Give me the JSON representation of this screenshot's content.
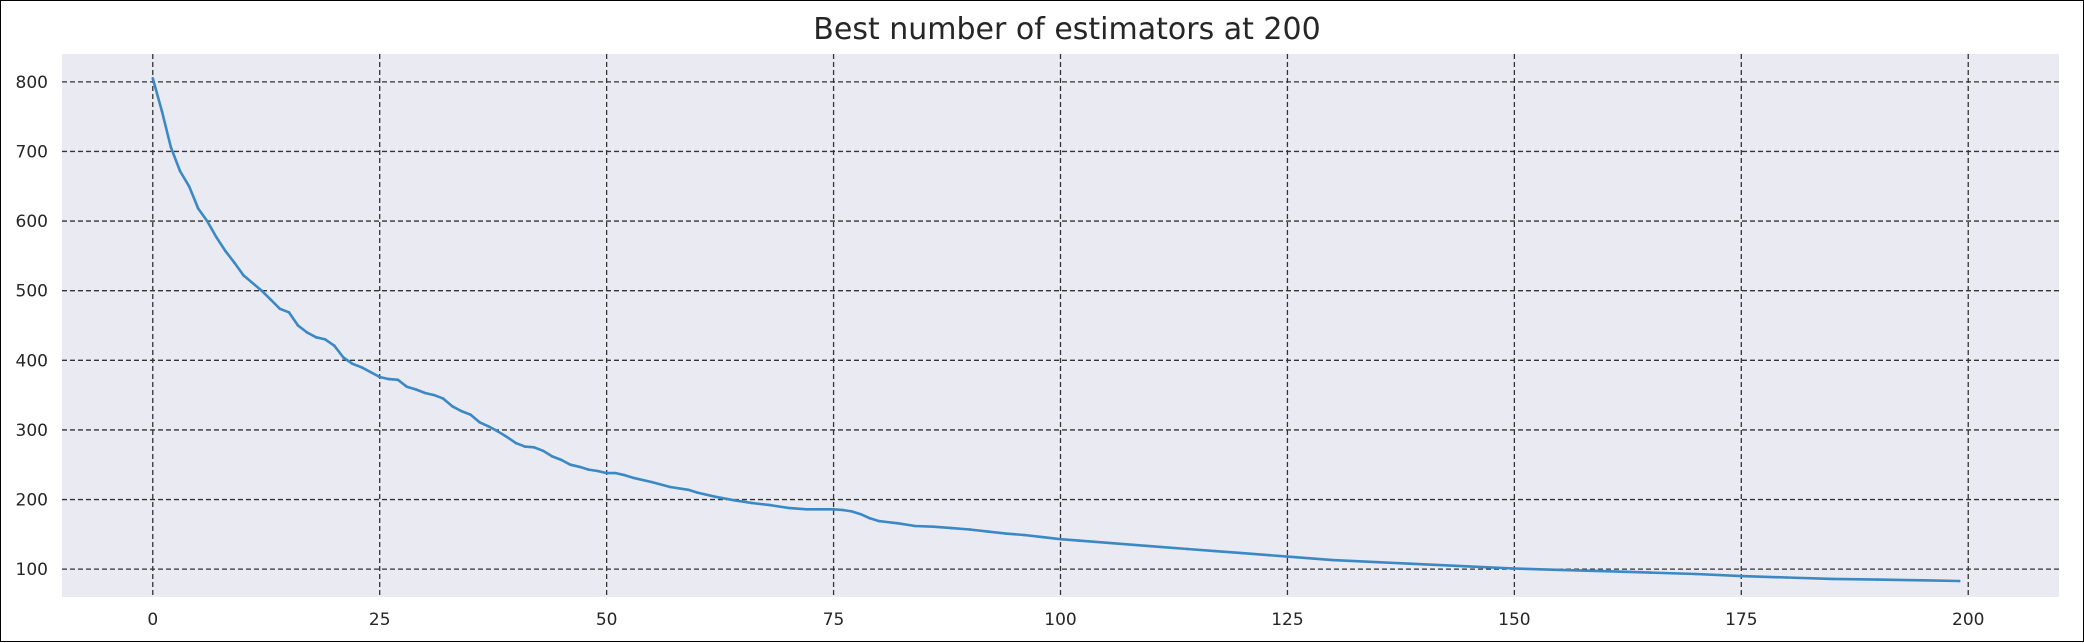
{
  "chart_data": {
    "type": "line",
    "title": "Best number of estimators at 200",
    "xlabel": "",
    "ylabel": "",
    "xlim": [
      -10,
      210
    ],
    "ylim": [
      60,
      840
    ],
    "xticks": [
      0,
      25,
      50,
      75,
      100,
      125,
      150,
      175,
      200
    ],
    "yticks": [
      100,
      200,
      300,
      400,
      500,
      600,
      700,
      800
    ],
    "grid": true,
    "grid_style": "dashed",
    "background_color": "#eaeaf2",
    "line_color": "#3a89c4",
    "series": [
      {
        "x": [
          0,
          1,
          2,
          3,
          4,
          5,
          6,
          7,
          8,
          9,
          10,
          12,
          13,
          14,
          15,
          16,
          17,
          18,
          19,
          20,
          21,
          22,
          23,
          24,
          25,
          26,
          27,
          28,
          29,
          30,
          31,
          32,
          33,
          34,
          35,
          36,
          37,
          38,
          39,
          40,
          41,
          42,
          43,
          44,
          45,
          46,
          47,
          48,
          49,
          50,
          51,
          52,
          53,
          55,
          57,
          59,
          60,
          62,
          64,
          66,
          68,
          70,
          72,
          74,
          75,
          76,
          77,
          78,
          79,
          80,
          82,
          84,
          86,
          88,
          90,
          92,
          94,
          96,
          98,
          100,
          102,
          105,
          108,
          111,
          114,
          117,
          120,
          123,
          125,
          128,
          130,
          135,
          140,
          145,
          150,
          155,
          160,
          165,
          170,
          175,
          180,
          185,
          190,
          195,
          199
        ],
        "y": [
          805,
          758,
          706,
          672,
          650,
          618,
          600,
          577,
          557,
          540,
          522,
          500,
          487,
          474,
          469,
          450,
          440,
          433,
          430,
          421,
          404,
          395,
          390,
          383,
          376,
          373,
          372,
          362,
          358,
          353,
          350,
          345,
          334,
          327,
          322,
          311,
          305,
          298,
          290,
          281,
          276,
          275,
          270,
          262,
          257,
          250,
          247,
          243,
          241,
          238,
          238,
          235,
          231,
          225,
          218,
          214,
          210,
          204,
          199,
          195,
          192,
          188,
          186,
          186,
          186,
          185,
          183,
          179,
          173,
          169,
          166,
          162,
          161,
          159,
          157,
          154,
          151,
          149,
          146,
          143,
          141,
          138,
          135,
          132,
          129,
          126,
          123,
          120,
          118,
          115,
          113,
          110,
          107,
          104,
          101,
          99,
          97,
          95,
          93,
          90,
          88,
          86,
          85,
          84,
          83
        ]
      }
    ]
  }
}
